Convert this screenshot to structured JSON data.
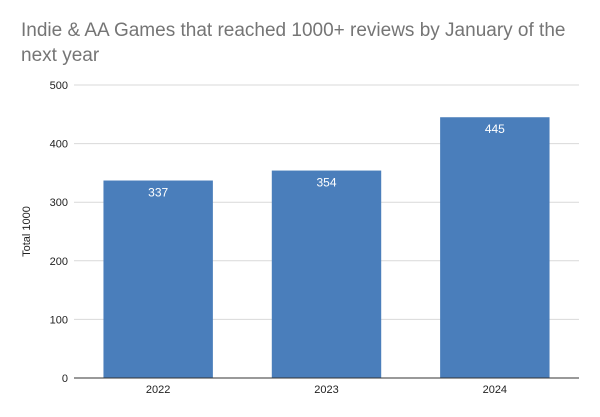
{
  "chart_data": {
    "type": "bar",
    "title": "Indie & AA Games that reached 1000+ reviews by January of the next year",
    "xlabel": "",
    "ylabel": "Total 1000",
    "categories": [
      "2022",
      "2023",
      "2024"
    ],
    "series": [
      {
        "values": [
          337,
          354,
          445
        ],
        "color": "#4a7ebb"
      }
    ],
    "data_labels": [
      "337",
      "354",
      "445"
    ],
    "ylim": [
      0,
      500
    ],
    "yticks": [
      0,
      100,
      200,
      300,
      400,
      500
    ],
    "ytick_labels": [
      "0",
      "100",
      "200",
      "300",
      "400",
      "500"
    ],
    "grid": true,
    "gridline_color": "#d9d9d9",
    "legend": "none"
  }
}
